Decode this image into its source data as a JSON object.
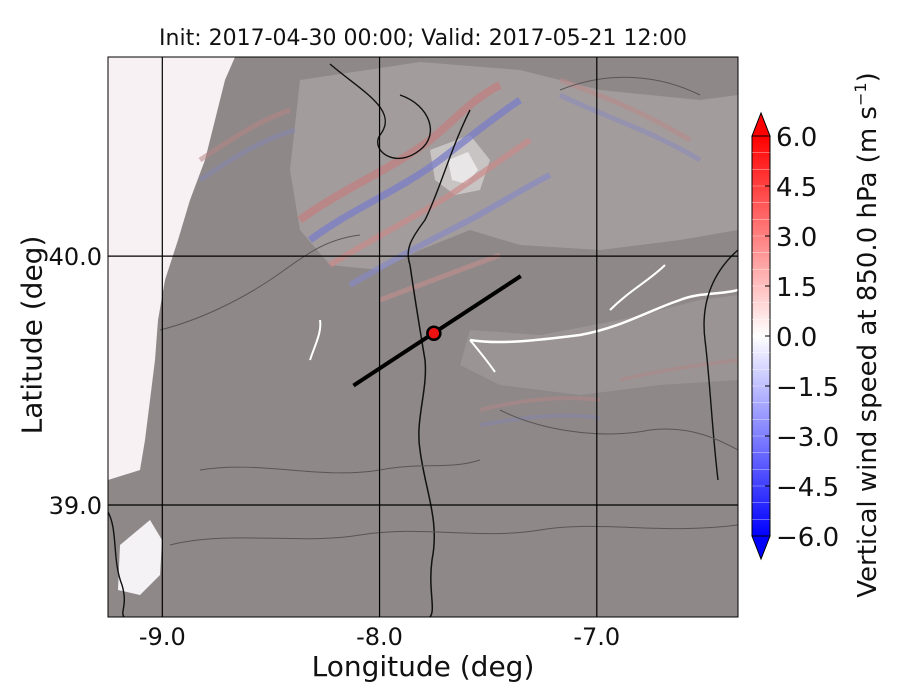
{
  "chart_data": {
    "type": "heatmap",
    "title": "Init: 2017-04-30 00:00; Valid: 2017-05-21 12:00",
    "xlabel": "Longitude (deg)",
    "ylabel": "Latitude (deg)",
    "xlim": [
      -9.25,
      -6.35
    ],
    "ylim": [
      38.55,
      40.8
    ],
    "xticks": [
      -9.0,
      -8.0,
      -7.0
    ],
    "xtick_labels": [
      "-9.0",
      "-8.0",
      "-7.0"
    ],
    "yticks": [
      39.0,
      40.0
    ],
    "ytick_labels": [
      "39.0",
      "40.0"
    ],
    "grid": true,
    "colorbar": {
      "label": "Vertical wind speed at 850.0 hPa (m s",
      "label_sup": "−1",
      "label_end": ")",
      "range": [
        -6.0,
        6.0
      ],
      "ticks": [
        6.0,
        4.5,
        3.0,
        1.5,
        0.0,
        -1.5,
        -3.0,
        -4.5,
        -6.0
      ],
      "tick_labels": [
        "6.0",
        "4.5",
        "3.0",
        "1.5",
        "0.0",
        "−1.5",
        "−3.0",
        "−4.5",
        "−6.0"
      ],
      "extend": "both",
      "cmap": "bwr",
      "levels": 24
    },
    "cross_section_line": {
      "start": [
        -8.12,
        39.48
      ],
      "end": [
        -7.35,
        39.92
      ]
    },
    "point": {
      "lon": -7.75,
      "lat": 39.69
    },
    "colors": {
      "point_fill": "#ee1111",
      "line": "#000000",
      "terrain": "#8f8888",
      "coast_ocean": "#f8f1f4"
    }
  }
}
